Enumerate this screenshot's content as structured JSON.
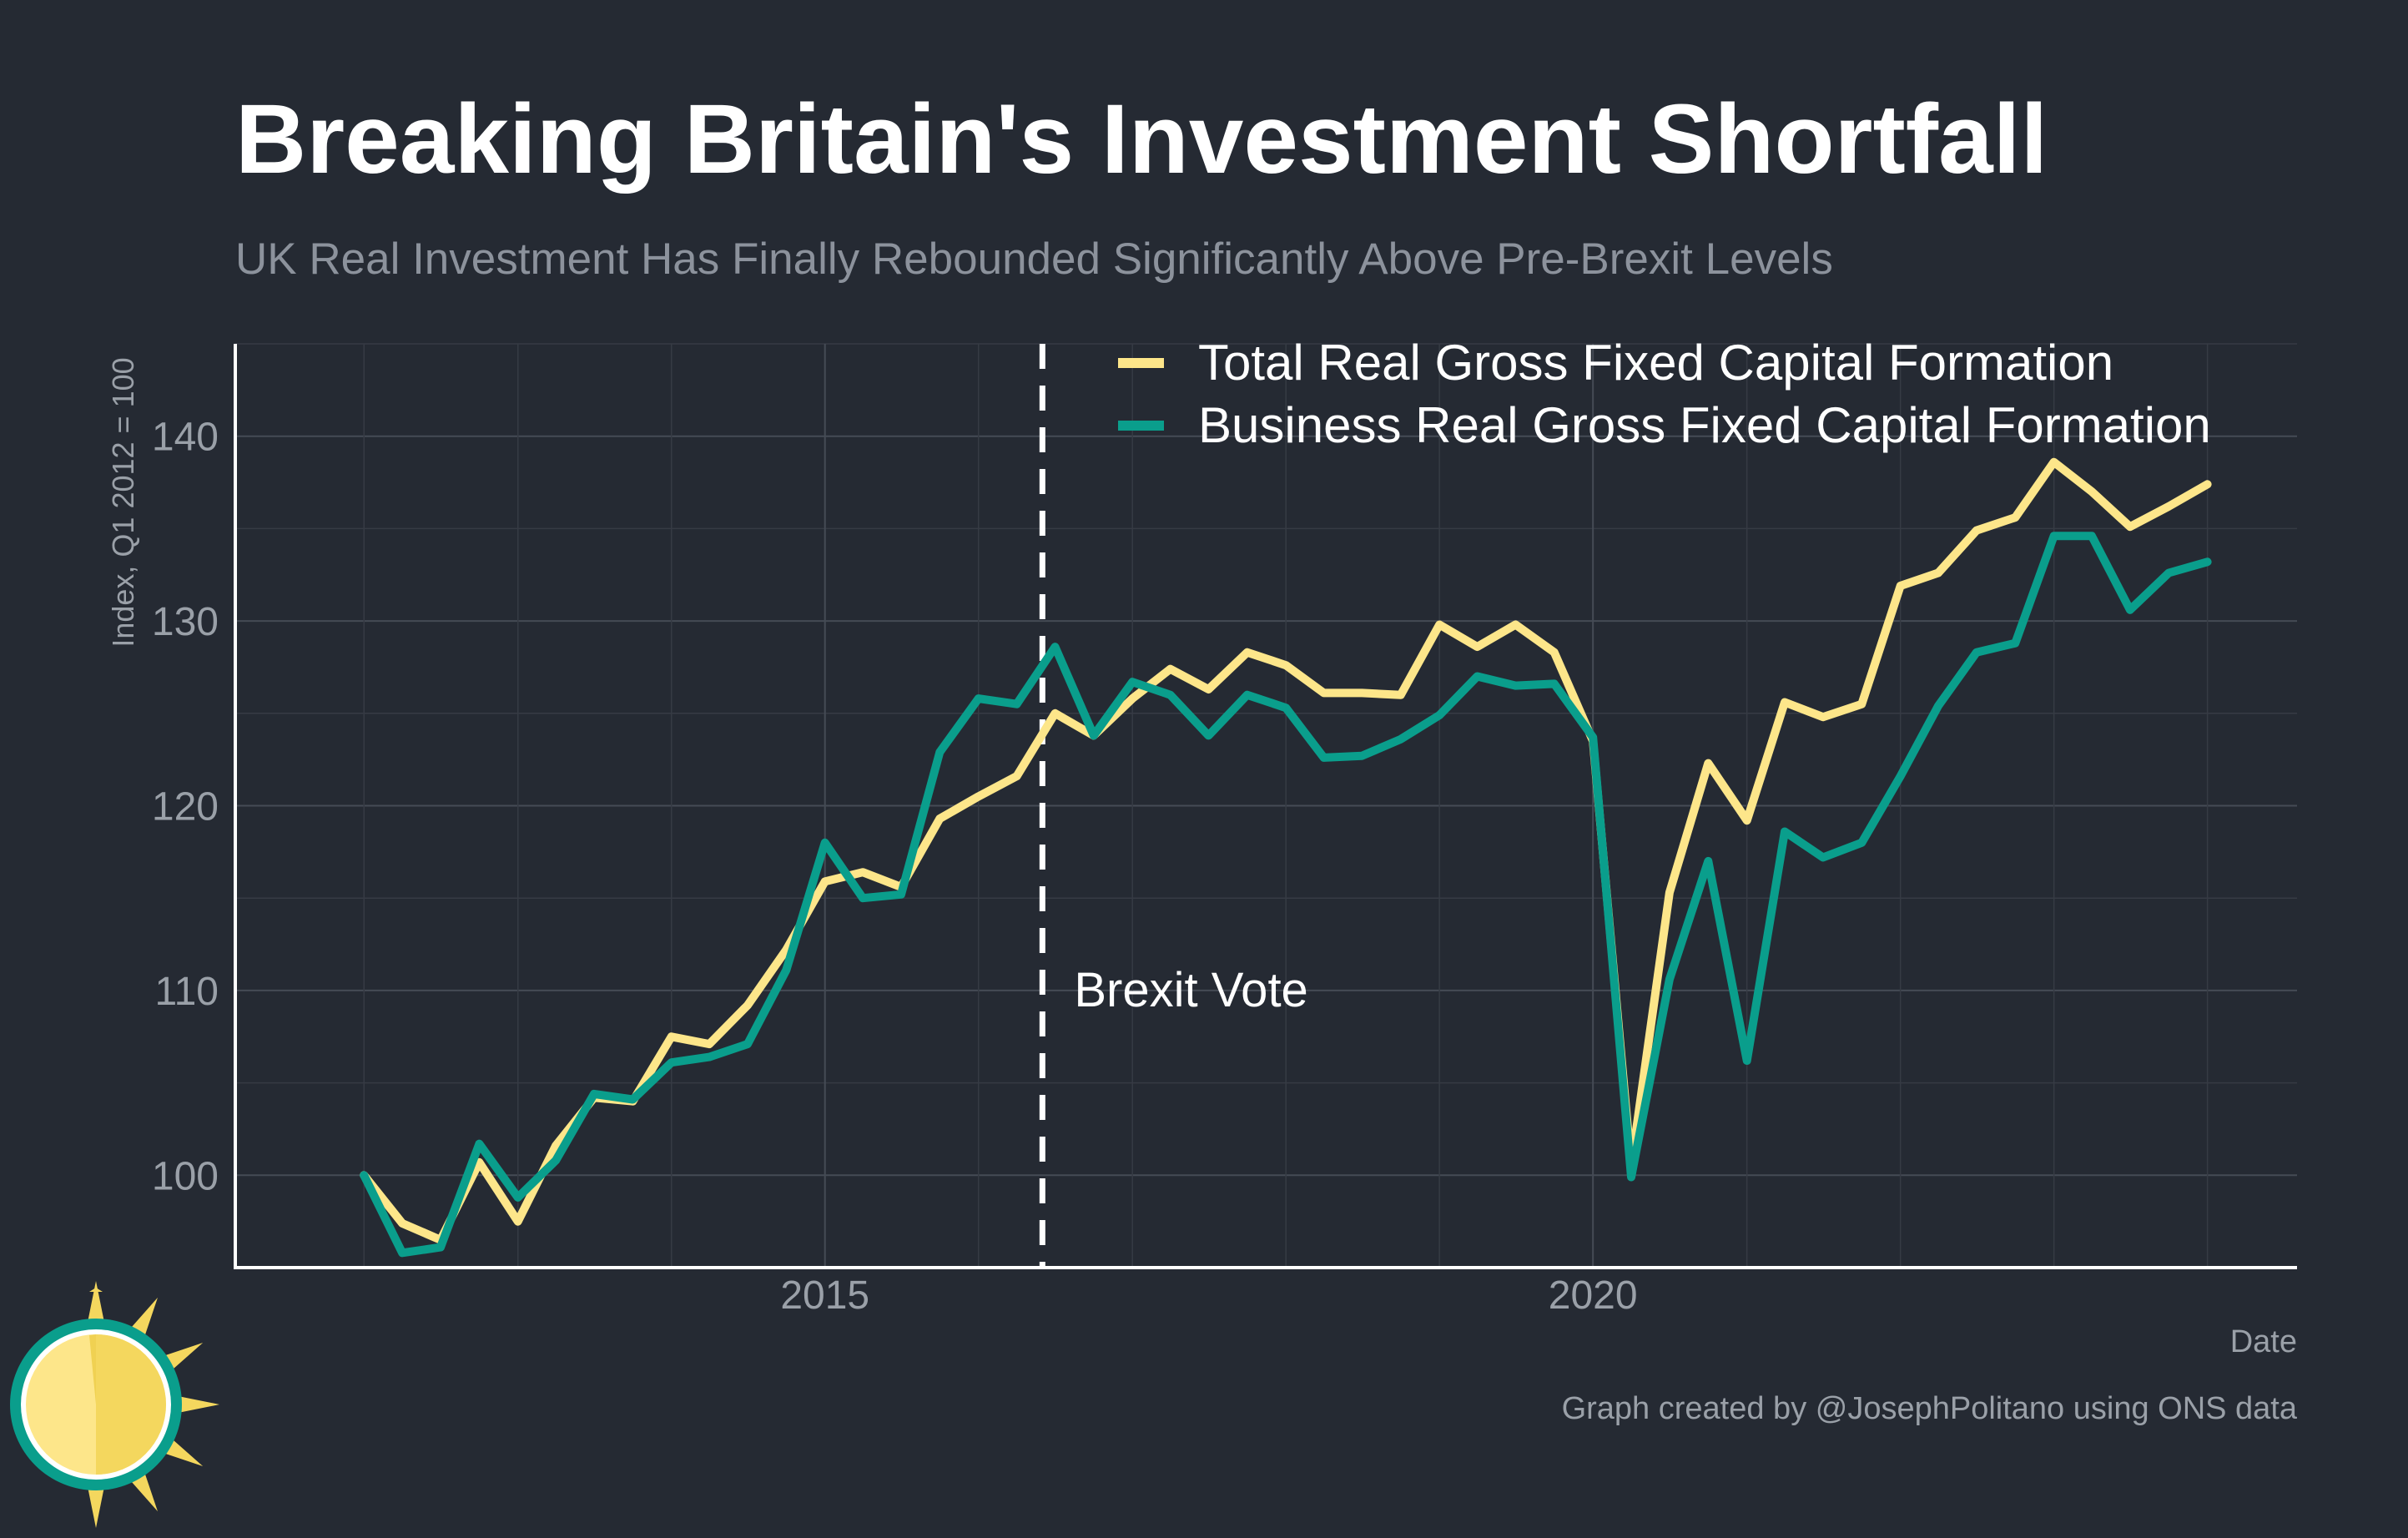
{
  "chart_data": {
    "type": "line",
    "title": "Breaking Britain's Investment Shortfall",
    "subtitle": "UK Real Investment Has Finally Rebounded Significantly Above Pre-Brexit Levels",
    "xlabel": "Date",
    "ylabel": "Index, Q1 2012 = 100",
    "caption": "Graph created by @JosephPolitano using ONS data",
    "x_ticks": [
      "2015",
      "2020"
    ],
    "y_ticks": [
      100,
      110,
      120,
      130,
      140
    ],
    "ylim": [
      95,
      145
    ],
    "grid": true,
    "legend_position": "top-right",
    "x": [
      "2012-01",
      "2012-04",
      "2012-07",
      "2012-10",
      "2013-01",
      "2013-04",
      "2013-07",
      "2013-10",
      "2014-01",
      "2014-04",
      "2014-07",
      "2014-10",
      "2015-01",
      "2015-04",
      "2015-07",
      "2015-10",
      "2016-01",
      "2016-04",
      "2016-07",
      "2016-10",
      "2017-01",
      "2017-04",
      "2017-07",
      "2017-10",
      "2018-01",
      "2018-04",
      "2018-07",
      "2018-10",
      "2019-01",
      "2019-04",
      "2019-07",
      "2019-10",
      "2020-01",
      "2020-04",
      "2020-07",
      "2020-10",
      "2021-01",
      "2021-04",
      "2021-07",
      "2021-10",
      "2022-01",
      "2022-04",
      "2022-07",
      "2022-10",
      "2023-01",
      "2023-04",
      "2023-07",
      "2023-10",
      "2024-01"
    ],
    "series": [
      {
        "name": "Total Real Gross Fixed Capital Formation",
        "color": "#fde68a",
        "values": [
          100.0,
          97.4,
          96.5,
          100.7,
          97.5,
          101.6,
          104.2,
          104.0,
          107.5,
          107.1,
          109.2,
          112.2,
          115.9,
          116.4,
          115.6,
          119.3,
          120.5,
          121.6,
          125.0,
          123.8,
          125.8,
          127.4,
          126.3,
          128.3,
          127.6,
          126.1,
          126.1,
          126.0,
          129.8,
          128.6,
          129.8,
          128.3,
          123.5,
          100.5,
          115.3,
          122.3,
          119.2,
          125.6,
          124.8,
          125.5,
          131.9,
          132.6,
          134.9,
          135.6,
          138.6,
          137.0,
          135.1,
          136.2,
          137.4
        ]
      },
      {
        "name": "Business Real Gross Fixed Capital Formation",
        "color": "#0a9e8c",
        "values": [
          100.0,
          95.8,
          96.1,
          101.7,
          98.8,
          100.8,
          104.4,
          104.1,
          106.1,
          106.4,
          107.1,
          111.1,
          118.0,
          115.0,
          115.2,
          122.9,
          125.8,
          125.5,
          128.6,
          123.8,
          126.7,
          126.0,
          123.8,
          126.0,
          125.3,
          122.6,
          122.7,
          123.6,
          124.9,
          127.0,
          126.5,
          126.6,
          123.7,
          99.9,
          110.6,
          117.0,
          106.2,
          118.6,
          117.2,
          118.0,
          121.6,
          125.4,
          128.3,
          128.8,
          134.6,
          134.6,
          130.6,
          132.6,
          133.2
        ]
      }
    ],
    "annotations": [
      {
        "x": "2016-06",
        "label": "Brexit Vote",
        "style": "dashed vertical line"
      }
    ]
  }
}
